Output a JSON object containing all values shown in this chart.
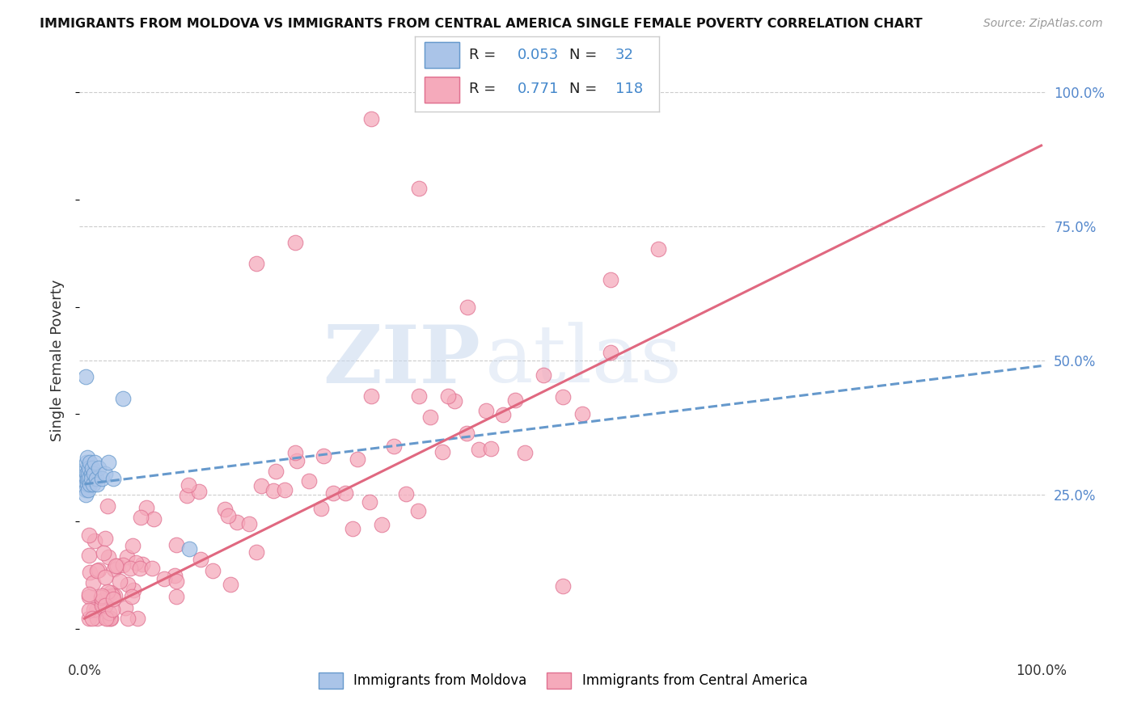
{
  "title": "IMMIGRANTS FROM MOLDOVA VS IMMIGRANTS FROM CENTRAL AMERICA SINGLE FEMALE POVERTY CORRELATION CHART",
  "source": "Source: ZipAtlas.com",
  "ylabel": "Single Female Poverty",
  "series1_color": "#aac4e8",
  "series1_edge": "#6699cc",
  "series2_color": "#f5aabb",
  "series2_edge": "#e07090",
  "line1_color": "#6699cc",
  "line2_color": "#e06880",
  "background": "#ffffff",
  "grid_color": "#cccccc",
  "watermark_zip": "ZIP",
  "watermark_atlas": "atlas",
  "label1": "Immigrants from Moldova",
  "label2": "Immigrants from Central America",
  "r1": "0.053",
  "n1": "32",
  "r2": "0.771",
  "n2": "118"
}
